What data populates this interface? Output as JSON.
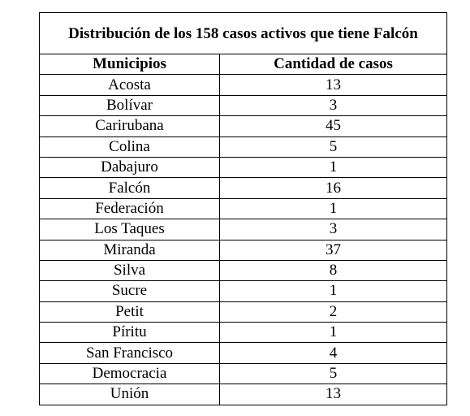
{
  "table": {
    "title": "Distribución de los 158 casos activos que tiene Falcón",
    "header": [
      "Municipios",
      "Cantidad de casos"
    ],
    "rows": [
      [
        "Acosta",
        13
      ],
      [
        "Bolívar",
        3
      ],
      [
        "Carirubana",
        45
      ],
      [
        "Colina",
        5
      ],
      [
        "Dabajuro",
        1
      ],
      [
        "Falcón",
        16
      ],
      [
        "Federación",
        1
      ],
      [
        "Los Taques",
        3
      ],
      [
        "Miranda",
        37
      ],
      [
        "Silva",
        8
      ],
      [
        "Sucre",
        1
      ],
      [
        "Petit",
        2
      ],
      [
        "Píritu",
        1
      ],
      [
        "San Francisco",
        4
      ],
      [
        "Democracia",
        5
      ],
      [
        "Unión",
        13
      ]
    ]
  }
}
